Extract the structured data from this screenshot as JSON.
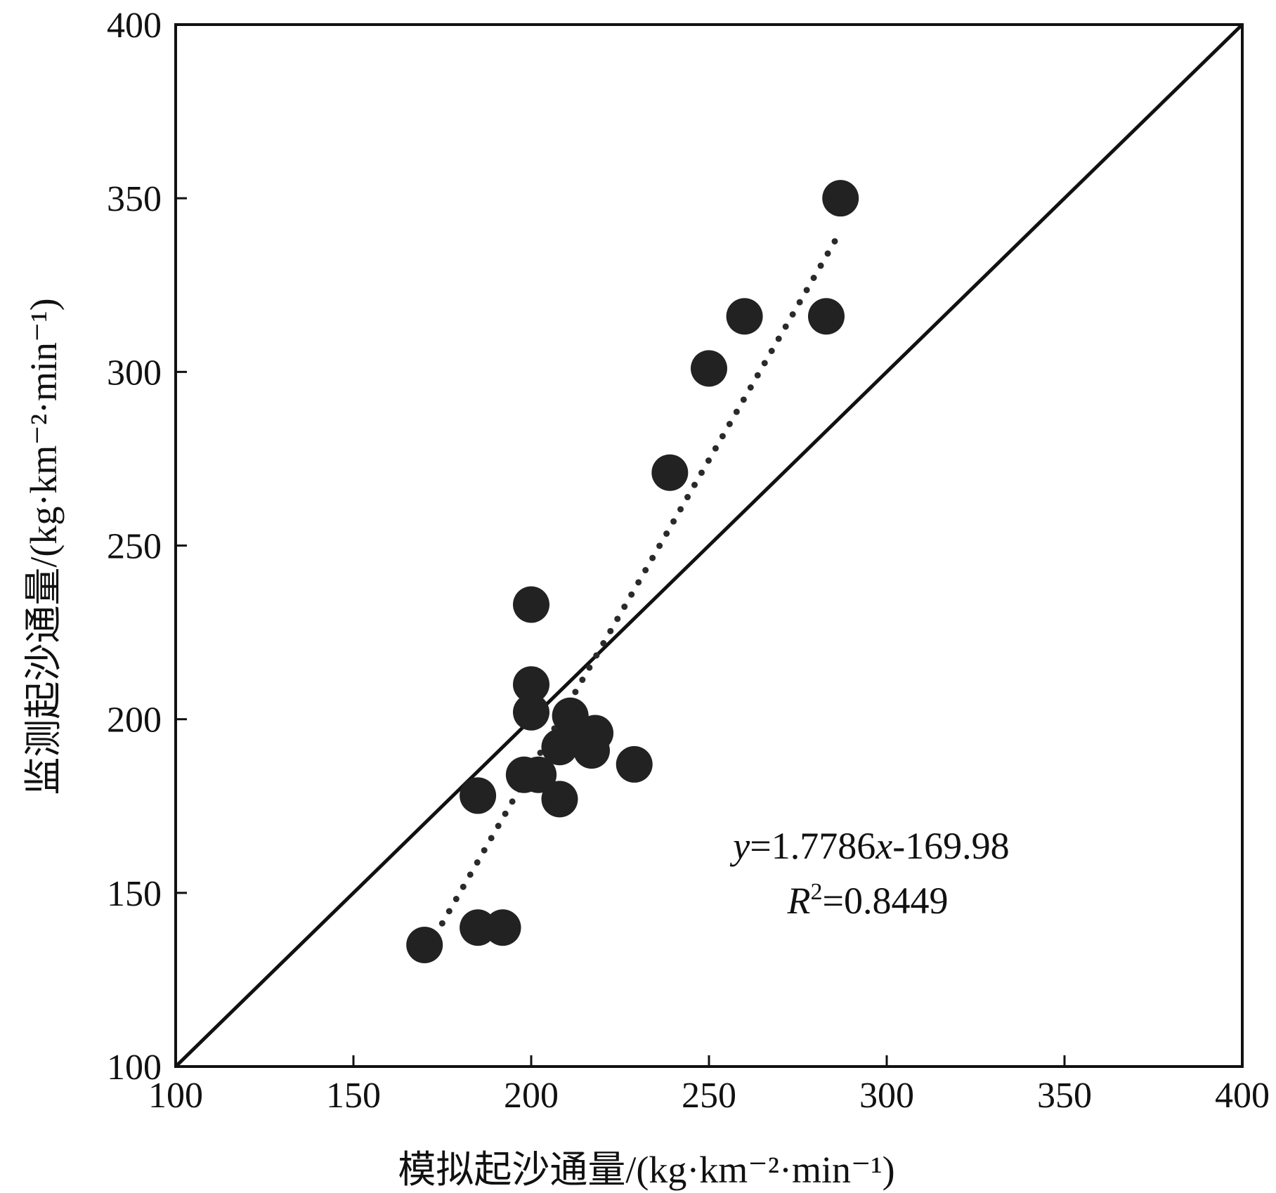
{
  "chart_data": {
    "type": "scatter",
    "title": "",
    "xlabel": "模拟起沙通量/(kg·km⁻²·min⁻¹)",
    "ylabel": "监测起沙通量/(kg·km⁻²·min⁻¹)",
    "xlim": [
      100,
      400
    ],
    "ylim": [
      100,
      400
    ],
    "xticks": [
      "100",
      "150",
      "200",
      "250",
      "300",
      "350",
      "400"
    ],
    "yticks": [
      "100",
      "150",
      "200",
      "250",
      "300",
      "350",
      "400"
    ],
    "grid": false,
    "series": [
      {
        "points": [
          {
            "x": 170,
            "y": 135
          },
          {
            "x": 185,
            "y": 140
          },
          {
            "x": 192,
            "y": 140
          },
          {
            "x": 185,
            "y": 178
          },
          {
            "x": 198,
            "y": 184
          },
          {
            "x": 202,
            "y": 184
          },
          {
            "x": 208,
            "y": 177
          },
          {
            "x": 200,
            "y": 202
          },
          {
            "x": 200,
            "y": 210
          },
          {
            "x": 200,
            "y": 233
          },
          {
            "x": 208,
            "y": 192
          },
          {
            "x": 211,
            "y": 201
          },
          {
            "x": 214,
            "y": 194
          },
          {
            "x": 217,
            "y": 191
          },
          {
            "x": 218,
            "y": 196
          },
          {
            "x": 229,
            "y": 187
          },
          {
            "x": 239,
            "y": 271
          },
          {
            "x": 250,
            "y": 301
          },
          {
            "x": 260,
            "y": 316
          },
          {
            "x": 283,
            "y": 316
          },
          {
            "x": 287,
            "y": 350
          }
        ]
      }
    ],
    "fit_line": {
      "slope": 1.7786,
      "intercept": -169.98,
      "x_range": [
        173,
        287
      ],
      "style": "dotted"
    },
    "reference_line": {
      "slope": 1,
      "intercept": 0,
      "style": "solid"
    },
    "annotation": {
      "eq_y": "y",
      "eq_rest": "=1.7786",
      "eq_x": "x",
      "eq_tail": "-169.98",
      "r2_r": "R",
      "r2_sup": "2",
      "r2_val": "=0.8449"
    }
  }
}
